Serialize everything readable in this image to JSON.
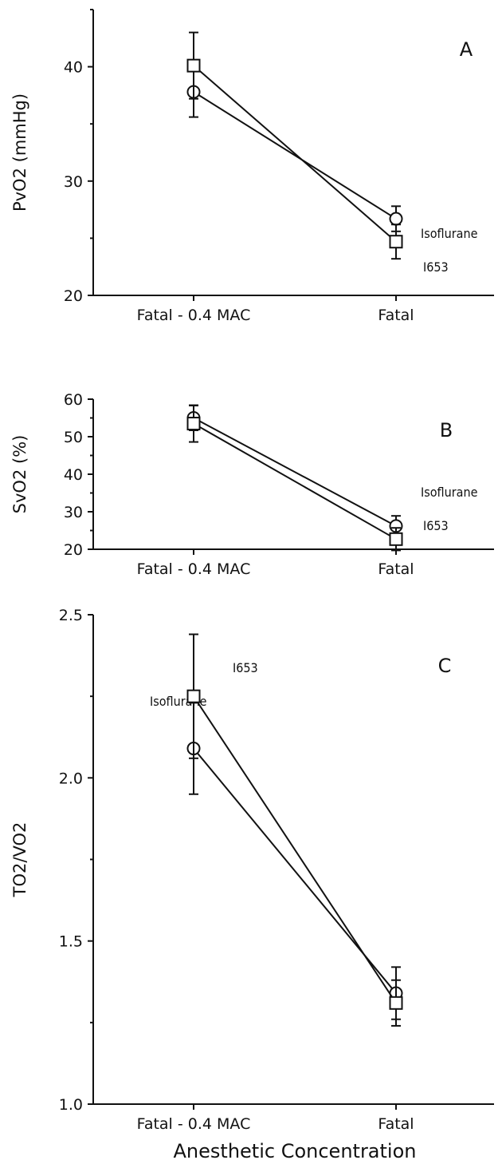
{
  "chart_data": [
    {
      "type": "line",
      "panel_label": "A",
      "ylabel": "PvO2 (mmHg)",
      "xlabel": "",
      "categories": [
        "Fatal - 0.4 MAC",
        "Fatal"
      ],
      "ylim": [
        20,
        45
      ],
      "yticks": [
        20,
        30,
        40
      ],
      "ytick_labels": [
        "20",
        "30",
        "40"
      ],
      "grid": false,
      "series": [
        {
          "name": "Isoflurane",
          "marker": "circle",
          "values": [
            37.8,
            26.7
          ],
          "errors": [
            2.2,
            1.1
          ]
        },
        {
          "name": "I653",
          "marker": "square",
          "values": [
            40.1,
            24.7
          ],
          "errors": [
            2.9,
            1.5
          ]
        }
      ]
    },
    {
      "type": "line",
      "panel_label": "B",
      "ylabel": "SvO2 (%)",
      "xlabel": "",
      "categories": [
        "Fatal - 0.4 MAC",
        "Fatal"
      ],
      "ylim": [
        20,
        60
      ],
      "yticks": [
        20,
        30,
        40,
        50,
        60
      ],
      "ytick_labels": [
        "20",
        "30",
        "40",
        "50",
        "60"
      ],
      "grid": false,
      "series": [
        {
          "name": "Isoflurane",
          "marker": "circle",
          "values": [
            55.0,
            26.2
          ],
          "errors": [
            3.3,
            2.7
          ]
        },
        {
          "name": "I653",
          "marker": "square",
          "values": [
            53.5,
            22.7
          ],
          "errors": [
            4.9,
            3.0
          ]
        }
      ]
    },
    {
      "type": "line",
      "panel_label": "C",
      "ylabel": "TO2/VO2",
      "xlabel": "Anesthetic Concentration",
      "categories": [
        "Fatal - 0.4 MAC",
        "Fatal"
      ],
      "ylim": [
        1.0,
        2.5
      ],
      "yticks": [
        1.0,
        1.5,
        2.0,
        2.5
      ],
      "ytick_labels": [
        "1.0",
        "1.5",
        "2.0",
        "2.5"
      ],
      "grid": false,
      "series": [
        {
          "name": "Isoflurane",
          "marker": "circle",
          "values": [
            2.09,
            1.34
          ],
          "errors": [
            0.14,
            0.08
          ]
        },
        {
          "name": "I653",
          "marker": "square",
          "values": [
            2.25,
            1.31
          ],
          "errors": [
            0.19,
            0.07
          ]
        }
      ]
    }
  ]
}
